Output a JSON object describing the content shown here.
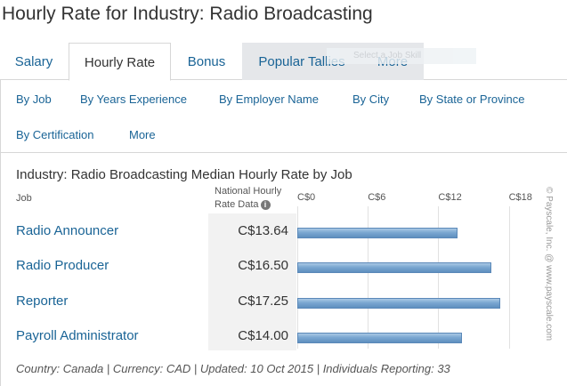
{
  "page": {
    "title": "Hourly Rate for Industry: Radio Broadcasting"
  },
  "tabs": [
    {
      "label": "Salary",
      "state": "default"
    },
    {
      "label": "Hourly Rate",
      "state": "active"
    },
    {
      "label": "Bonus",
      "state": "default"
    },
    {
      "label": "Popular Tallies",
      "state": "hovered"
    },
    {
      "label": "More",
      "state": "hovered"
    }
  ],
  "tooltip_ghost": "Select a Job Skill",
  "subnav": [
    "By Job",
    "By Years Experience",
    "By Employer Name",
    "By City",
    "By State or Province",
    "By Certification",
    "More"
  ],
  "chart": {
    "title": "Industry: Radio Broadcasting Median Hourly Rate by Job",
    "col_job": "Job",
    "col_value_line1": "National Hourly",
    "col_value_line2": "Rate Data",
    "info_icon": "i",
    "watermark": "© Payscale, Inc. @ www.payscale.com"
  },
  "chart_data": {
    "type": "bar",
    "orientation": "horizontal",
    "categories": [
      "Radio Announcer",
      "Radio Producer",
      "Reporter",
      "Payroll Administrator"
    ],
    "values": [
      13.64,
      16.5,
      17.25,
      14.0
    ],
    "value_labels": [
      "C$13.64",
      "C$16.50",
      "C$17.25",
      "C$14.00"
    ],
    "ticks": [
      0,
      6,
      12,
      18
    ],
    "tick_labels": [
      "C$0",
      "C$6",
      "C$12",
      "C$18"
    ],
    "xlim": [
      0,
      18
    ],
    "bar_color": "#7aa7d1"
  },
  "footer": "Country: Canada | Currency: CAD | Updated: 10 Oct 2015 | Individuals Reporting: 33"
}
